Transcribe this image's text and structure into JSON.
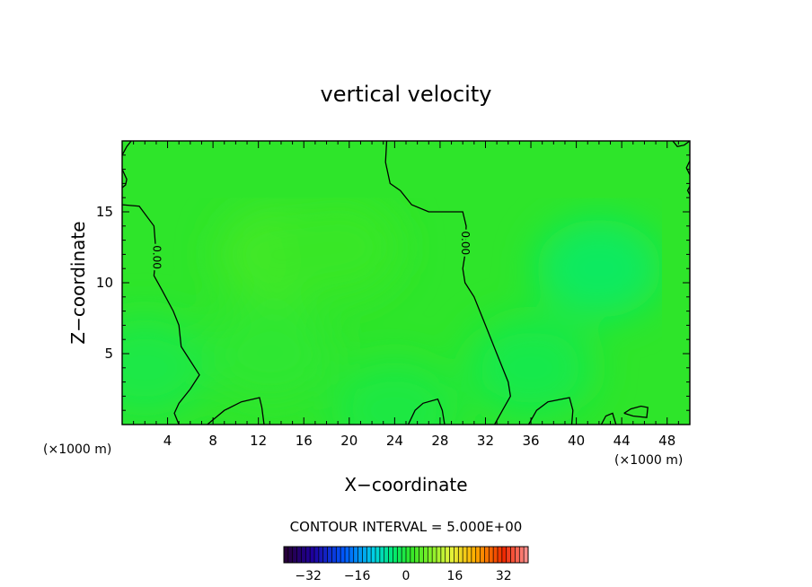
{
  "chart_data": {
    "type": "heatmap",
    "title": "vertical velocity",
    "xlabel": "X−coordinate",
    "ylabel": "Z−coordinate",
    "x_unit_left": "(×1000 m)",
    "x_unit_right": "(×1000 m)",
    "xlim": [
      0,
      50
    ],
    "ylim": [
      0,
      20
    ],
    "x_ticks": [
      4,
      8,
      12,
      16,
      20,
      24,
      28,
      32,
      36,
      40,
      44,
      48
    ],
    "y_ticks": [
      5,
      10,
      15
    ],
    "contour_label": "0.00",
    "contour_interval_text": "CONTOUR INTERVAL = 5.000E+00",
    "colorbar": {
      "range": [
        -40,
        40
      ],
      "ticks": [
        -32,
        -16,
        0,
        16,
        32
      ],
      "tick_labels": [
        "−32",
        "−16",
        "0",
        "16",
        "32"
      ]
    },
    "field_blobs": [
      {
        "x": 14,
        "z": 12,
        "value": 3.0
      },
      {
        "x": 19,
        "z": 12.5,
        "value": 2.0
      },
      {
        "x": 13,
        "z": 5,
        "value": 1.0
      },
      {
        "x": 42,
        "z": 11,
        "value": -3.0
      },
      {
        "x": 2,
        "z": 4,
        "value": -0.8
      },
      {
        "x": 36,
        "z": 4,
        "value": -1.2
      },
      {
        "x": 24,
        "z": 1,
        "value": -0.5
      }
    ],
    "zero_contours": [
      [
        [
          0,
          15.5
        ],
        [
          1.5,
          15.4
        ],
        [
          2.8,
          14
        ],
        [
          3,
          12
        ],
        [
          2.8,
          10.5
        ],
        [
          3.5,
          9.5
        ],
        [
          4.5,
          8
        ],
        [
          5,
          7
        ],
        [
          5.2,
          5.5
        ],
        [
          6,
          4.5
        ],
        [
          6.8,
          3.5
        ],
        [
          6,
          2.5
        ],
        [
          5,
          1.5
        ],
        [
          4.6,
          0.8
        ],
        [
          5,
          0
        ]
      ],
      [
        [
          23.3,
          20
        ],
        [
          23.2,
          18.5
        ],
        [
          23.6,
          17
        ],
        [
          24.5,
          16.5
        ],
        [
          25.5,
          15.5
        ],
        [
          27,
          15
        ],
        [
          28.5,
          15
        ],
        [
          30,
          15
        ],
        [
          30.3,
          14
        ],
        [
          30.2,
          12
        ],
        [
          30,
          11
        ],
        [
          30.2,
          10
        ],
        [
          31,
          9
        ],
        [
          32,
          7
        ],
        [
          33,
          5
        ],
        [
          34,
          3
        ],
        [
          34.2,
          2
        ],
        [
          33.5,
          1
        ],
        [
          32.8,
          0
        ]
      ],
      [
        [
          7.5,
          0
        ],
        [
          9,
          1
        ],
        [
          10.5,
          1.6
        ],
        [
          12.1,
          1.9
        ],
        [
          12.3,
          1.2
        ],
        [
          12.5,
          0
        ]
      ],
      [
        [
          25.2,
          0
        ],
        [
          25.8,
          1
        ],
        [
          26.5,
          1.5
        ],
        [
          27.8,
          1.8
        ],
        [
          28.2,
          1
        ],
        [
          28.4,
          0
        ]
      ],
      [
        [
          35.8,
          0
        ],
        [
          36.5,
          1
        ],
        [
          37.5,
          1.6
        ],
        [
          39.4,
          1.9
        ],
        [
          39.7,
          1
        ],
        [
          39.6,
          0
        ]
      ],
      [
        [
          42.2,
          0
        ],
        [
          42.6,
          0.6
        ],
        [
          43.2,
          0.8
        ],
        [
          43.5,
          0
        ]
      ],
      [
        [
          44.2,
          0.8
        ],
        [
          44.8,
          1.1
        ],
        [
          45.7,
          1.3
        ],
        [
          46.3,
          1.2
        ],
        [
          46.2,
          0.5
        ],
        [
          45,
          0.6
        ],
        [
          44.2,
          0.8
        ]
      ],
      [
        [
          0,
          19
        ],
        [
          0.4,
          19.6
        ],
        [
          0.8,
          20
        ]
      ],
      [
        [
          0,
          18
        ],
        [
          0.4,
          17.3
        ],
        [
          0.3,
          16.9
        ],
        [
          0,
          16.7
        ]
      ],
      [
        [
          48.5,
          20
        ],
        [
          48.9,
          19.6
        ],
        [
          49.5,
          19.7
        ],
        [
          50,
          20
        ]
      ],
      [
        [
          50,
          18.6
        ],
        [
          49.7,
          18.1
        ],
        [
          50,
          17.6
        ]
      ],
      [
        [
          50,
          16.8
        ],
        [
          49.8,
          16.5
        ],
        [
          50,
          16.2
        ]
      ]
    ]
  }
}
